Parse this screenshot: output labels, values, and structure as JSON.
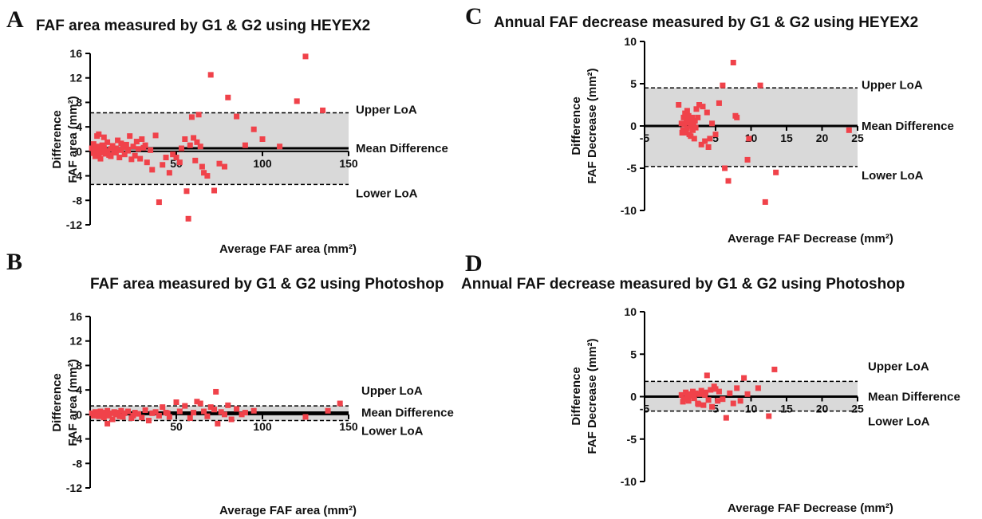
{
  "colors": {
    "point": "#f0424a",
    "band": "#d9d9d9",
    "axis": "#000000"
  },
  "chart_data": [
    {
      "panel": "A",
      "type": "scatter",
      "title": "FAF area measured by G1 & G2 using HEYEX2",
      "xlabel": "Average FAF area (mm²)",
      "ylabel_line1": "Difference",
      "ylabel_line2": "FAF area (mm²)",
      "xlim": [
        0,
        150
      ],
      "ylim": [
        -12,
        16
      ],
      "xticks": [
        "50",
        "100",
        "150"
      ],
      "xtick_values": [
        50,
        100,
        150
      ],
      "yticks": [
        "16",
        "12",
        "8",
        "4",
        "0",
        "-4",
        "-8",
        "-12"
      ],
      "ytick_values": [
        16,
        12,
        8,
        4,
        0,
        -4,
        -8,
        -12
      ],
      "mean": 0.5,
      "upper_loa": 6.3,
      "lower_loa": -5.4,
      "labels": {
        "upper": "Upper LoA",
        "mean": "Mean Difference",
        "lower": "Lower LoA"
      },
      "x": [
        1,
        2,
        2,
        3,
        3,
        4,
        4,
        5,
        5,
        6,
        6,
        7,
        7,
        8,
        8,
        9,
        10,
        10,
        11,
        12,
        13,
        14,
        15,
        16,
        17,
        18,
        19,
        20,
        21,
        22,
        23,
        24,
        25,
        26,
        27,
        28,
        29,
        30,
        31,
        32,
        33,
        35,
        36,
        38,
        40,
        42,
        44,
        46,
        48,
        50,
        52,
        53,
        55,
        56,
        57,
        58,
        59,
        60,
        61,
        62,
        63,
        64,
        65,
        66,
        68,
        70,
        72,
        75,
        78,
        80,
        85,
        90,
        95,
        100,
        110,
        120,
        125,
        135,
        5,
        8,
        12,
        15,
        18,
        22
      ],
      "y": [
        0.5,
        -0.3,
        1.2,
        0.2,
        -0.8,
        2.5,
        0.8,
        -0.5,
        2.8,
        0.3,
        -1.2,
        1.0,
        -0.2,
        0.6,
        2.3,
        -0.4,
        0.1,
        1.5,
        -0.6,
        0.4,
        0.9,
        -0.2,
        0.5,
        1.8,
        -1.0,
        0.2,
        0.7,
        -0.5,
        1.1,
        0.3,
        2.5,
        -1.3,
        0.8,
        -0.7,
        1.6,
        0.4,
        -1.2,
        2.0,
        0.6,
        1.0,
        -1.8,
        0.2,
        -3.0,
        2.6,
        -8.3,
        -2.2,
        -1.0,
        -3.5,
        -0.5,
        -1.0,
        -1.8,
        0.5,
        2.0,
        -6.5,
        -11.0,
        1.0,
        5.6,
        2.2,
        -1.5,
        1.5,
        6.0,
        0.8,
        -2.5,
        -3.5,
        -4.0,
        12.5,
        -6.4,
        -2.0,
        -2.5,
        8.8,
        5.7,
        1.0,
        3.6,
        2.0,
        0.8,
        8.2,
        15.5,
        6.7,
        -0.3,
        0.4,
        -0.8,
        -0.2,
        1.3,
        0.1
      ]
    },
    {
      "panel": "B",
      "type": "scatter",
      "title": "FAF area measured by G1 & G2 using Photoshop",
      "xlabel": "Average FAF area (mm²)",
      "ylabel_line1": "Difference",
      "ylabel_line2": "FAF area (mm²)",
      "xlim": [
        0,
        150
      ],
      "ylim": [
        -12,
        16
      ],
      "xticks": [
        "50",
        "100",
        "150"
      ],
      "xtick_values": [
        50,
        100,
        150
      ],
      "yticks": [
        "16",
        "12",
        "8",
        "4",
        "0",
        "-4",
        "-8",
        "-12"
      ],
      "ytick_values": [
        16,
        12,
        8,
        4,
        0,
        -4,
        -8,
        -12
      ],
      "mean": 0.3,
      "upper_loa": 1.4,
      "lower_loa": -1.0,
      "labels": {
        "upper": "Upper LoA",
        "mean": "Mean Difference",
        "lower": "Lower LoA"
      },
      "x": [
        1,
        2,
        3,
        4,
        5,
        6,
        7,
        8,
        9,
        10,
        11,
        12,
        13,
        14,
        15,
        16,
        17,
        18,
        19,
        20,
        22,
        24,
        26,
        28,
        30,
        32,
        34,
        36,
        38,
        40,
        42,
        44,
        46,
        50,
        52,
        55,
        58,
        60,
        62,
        64,
        66,
        68,
        70,
        72,
        74,
        76,
        78,
        80,
        82,
        85,
        88,
        90,
        95,
        125,
        138,
        145,
        10,
        25,
        45,
        73
      ],
      "y": [
        0.2,
        -0.2,
        0.4,
        0.1,
        -0.3,
        0.5,
        0.0,
        -0.5,
        0.3,
        0.6,
        -0.2,
        0.2,
        -0.8,
        0.4,
        0.0,
        0.3,
        -0.3,
        0.6,
        -0.4,
        0.2,
        0.5,
        -0.6,
        0.3,
        0.1,
        -0.5,
        0.7,
        -1.0,
        0.2,
        0.4,
        -0.2,
        1.2,
        0.3,
        -0.4,
        2.0,
        0.5,
        1.4,
        -0.6,
        0.3,
        2.1,
        1.8,
        0.5,
        -0.3,
        1.2,
        0.8,
        -1.5,
        0.4,
        0.0,
        1.5,
        -0.8,
        0.9,
        0.0,
        0.3,
        0.6,
        -0.4,
        0.6,
        1.8,
        -1.5,
        -0.2,
        0.2,
        3.7
      ]
    },
    {
      "panel": "C",
      "type": "scatter",
      "title": "Annual FAF decrease measured by G1 & G2 using  HEYEX2",
      "xlabel": "Average FAF Decrease (mm²)",
      "ylabel_line1": "Difference",
      "ylabel_line2": "FAF Decrease (mm²)",
      "xlim": [
        -5,
        25
      ],
      "ylim": [
        -10,
        10
      ],
      "xticks": [
        "-5",
        "5",
        "10",
        "15",
        "20",
        "25"
      ],
      "xtick_values": [
        -5,
        5,
        10,
        15,
        20,
        25
      ],
      "yticks": [
        "10",
        "5",
        "0",
        "-5",
        "-10"
      ],
      "ytick_values": [
        10,
        5,
        0,
        -5,
        -10
      ],
      "mean": 0.0,
      "upper_loa": 4.5,
      "lower_loa": -4.8,
      "labels": {
        "upper": "Upper LoA",
        "mean": "Mean Difference",
        "lower": "Lower LoA"
      },
      "x": [
        0.2,
        0.4,
        0.5,
        0.6,
        0.7,
        0.8,
        0.9,
        1.0,
        1.0,
        1.1,
        1.2,
        1.3,
        1.4,
        1.5,
        1.5,
        1.6,
        1.7,
        1.8,
        1.9,
        2.0,
        2.1,
        2.2,
        2.3,
        2.5,
        2.7,
        3.0,
        3.2,
        3.5,
        3.8,
        4.0,
        4.2,
        4.5,
        5.0,
        5.5,
        6.0,
        6.3,
        6.8,
        7.5,
        7.8,
        8.0,
        9.5,
        9.7,
        11.3,
        12.0,
        13.5,
        23.8,
        -0.2,
        0.3
      ],
      "y": [
        0.3,
        -0.5,
        1.0,
        0.2,
        1.5,
        -0.8,
        0.6,
        1.8,
        -0.3,
        0.4,
        1.2,
        -1.0,
        0.8,
        0.0,
        -1.2,
        0.5,
        1.0,
        -0.5,
        0.3,
        -1.5,
        0.6,
        -0.2,
        2.0,
        1.0,
        2.5,
        -2.2,
        2.3,
        -1.8,
        1.6,
        -2.5,
        -1.5,
        0.3,
        -1.0,
        2.7,
        4.8,
        -5.0,
        -6.5,
        7.5,
        1.2,
        1.0,
        -4.0,
        -1.5,
        4.8,
        -9.0,
        -5.5,
        -0.5,
        2.5,
        -0.8
      ]
    },
    {
      "panel": "D",
      "type": "scatter",
      "title": "Annual FAF decrease measured by G1 & G2 using  Photoshop",
      "xlabel": "Average FAF Decrease (mm²)",
      "ylabel_line1": "Difference",
      "ylabel_line2": "FAF Decrease (mm²)",
      "xlim": [
        -5,
        25
      ],
      "ylim": [
        -10,
        10
      ],
      "xticks": [
        "-5",
        "5",
        "10",
        "15",
        "20",
        "25"
      ],
      "xtick_values": [
        -5,
        5,
        10,
        15,
        20,
        25
      ],
      "yticks": [
        "10",
        "5",
        "0",
        "-5",
        "-10"
      ],
      "ytick_values": [
        10,
        5,
        0,
        -5,
        -10
      ],
      "mean": 0.0,
      "upper_loa": 1.8,
      "lower_loa": -1.7,
      "labels": {
        "upper": "Upper LoA",
        "mean": "Mean Difference",
        "lower": "Lower LoA"
      },
      "x": [
        0.2,
        0.5,
        0.8,
        1.0,
        1.2,
        1.5,
        1.8,
        2.0,
        2.2,
        2.5,
        2.8,
        3.0,
        3.3,
        3.5,
        3.8,
        4.0,
        4.3,
        4.5,
        4.8,
        5.0,
        5.3,
        5.5,
        6.0,
        6.5,
        7.0,
        7.5,
        8.0,
        8.5,
        9.0,
        9.5,
        11.0,
        12.5,
        13.3,
        0.4,
        1.6,
        2.6,
        3.6
      ],
      "y": [
        0.2,
        -0.3,
        0.5,
        0.0,
        -0.5,
        0.3,
        0.6,
        -0.2,
        0.4,
        -0.8,
        0.3,
        0.7,
        -1.0,
        0.2,
        2.5,
        -0.4,
        0.8,
        -1.2,
        1.2,
        0.9,
        -0.5,
        0.6,
        -0.3,
        -2.5,
        0.4,
        -0.8,
        1.0,
        -0.5,
        2.2,
        0.3,
        1.0,
        -2.3,
        3.2,
        -0.6,
        0.1,
        -0.9,
        0.5
      ]
    }
  ]
}
